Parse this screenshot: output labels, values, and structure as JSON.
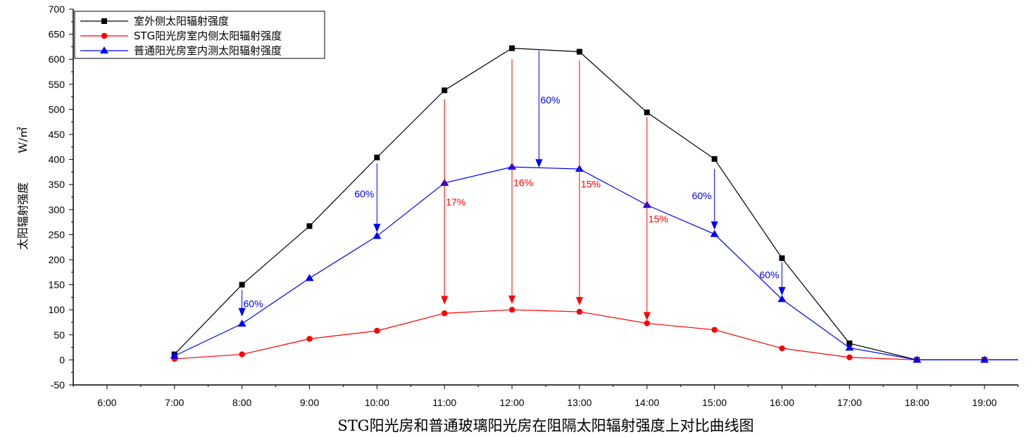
{
  "chart_data": {
    "type": "line",
    "title": "",
    "xlabel": "STG阳光房和普通玻璃阳光房在阻隔太阳辐射强度上对比曲线图",
    "ylabel": "太阳辐射强度",
    "ylabel_unit": "W/㎡",
    "x_ticks": [
      "6:00",
      "7:00",
      "8:00",
      "9:00",
      "10:00",
      "11:00",
      "12:00",
      "13:00",
      "14:00",
      "15:00",
      "16:00",
      "17:00",
      "18:00",
      "19:00"
    ],
    "x_range": [
      5.5,
      19.5
    ],
    "ylim": [
      -50,
      700
    ],
    "y_ticks": [
      -50,
      0,
      50,
      100,
      150,
      200,
      250,
      300,
      350,
      400,
      450,
      500,
      550,
      600,
      650,
      700
    ],
    "grid": false,
    "legend_position": "top-left",
    "series": [
      {
        "name": "室外侧太阳辐射强度",
        "color": "#000000",
        "marker": "square",
        "x": [
          7,
          8,
          9,
          10,
          11,
          12,
          13,
          14,
          15,
          16,
          17,
          18,
          19
        ],
        "values": [
          11,
          150,
          267,
          404,
          538,
          622,
          615,
          494,
          401,
          203,
          33,
          0,
          0
        ]
      },
      {
        "name": "STG阳光房室内侧太阳辐射强度",
        "color": "#ff0000",
        "marker": "circle",
        "x": [
          7,
          8,
          9,
          10,
          11,
          12,
          13,
          14,
          15,
          16,
          17,
          18,
          19
        ],
        "values": [
          2,
          11,
          42,
          58,
          93,
          100,
          96,
          73,
          60,
          23,
          5,
          0,
          0
        ]
      },
      {
        "name": "普通阳光房室内测太阳辐射强度",
        "color": "#0000ff",
        "marker": "triangle",
        "x": [
          7,
          8,
          9,
          10,
          11,
          12,
          13,
          14,
          15,
          16,
          17,
          18,
          19
        ],
        "values": [
          8,
          72,
          163,
          247,
          353,
          385,
          381,
          309,
          251,
          121,
          24,
          0,
          0
        ]
      }
    ],
    "annotations": [
      {
        "text": "60%",
        "color": "#0000ff",
        "x": 8,
        "from": 140,
        "to": 88
      },
      {
        "text": "60%",
        "color": "#0000ff",
        "x": 10,
        "from": 392,
        "to": 256
      },
      {
        "text": "60%",
        "color": "#0000ff",
        "x": 12.4,
        "from": 617,
        "to": 385
      },
      {
        "text": "60%",
        "color": "#0000ff",
        "x": 15,
        "from": 381,
        "to": 261
      },
      {
        "text": "60%",
        "color": "#0000ff",
        "x": 16,
        "from": 195,
        "to": 130
      },
      {
        "text": "17%",
        "color": "#ff0000",
        "x": 11,
        "from": 520,
        "to": 112
      },
      {
        "text": "16%",
        "color": "#ff0000",
        "x": 12,
        "from": 600,
        "to": 113
      },
      {
        "text": "15%",
        "color": "#ff0000",
        "x": 13,
        "from": 598,
        "to": 110
      },
      {
        "text": "15%",
        "color": "#ff0000",
        "x": 14,
        "from": 485,
        "to": 80
      }
    ]
  }
}
